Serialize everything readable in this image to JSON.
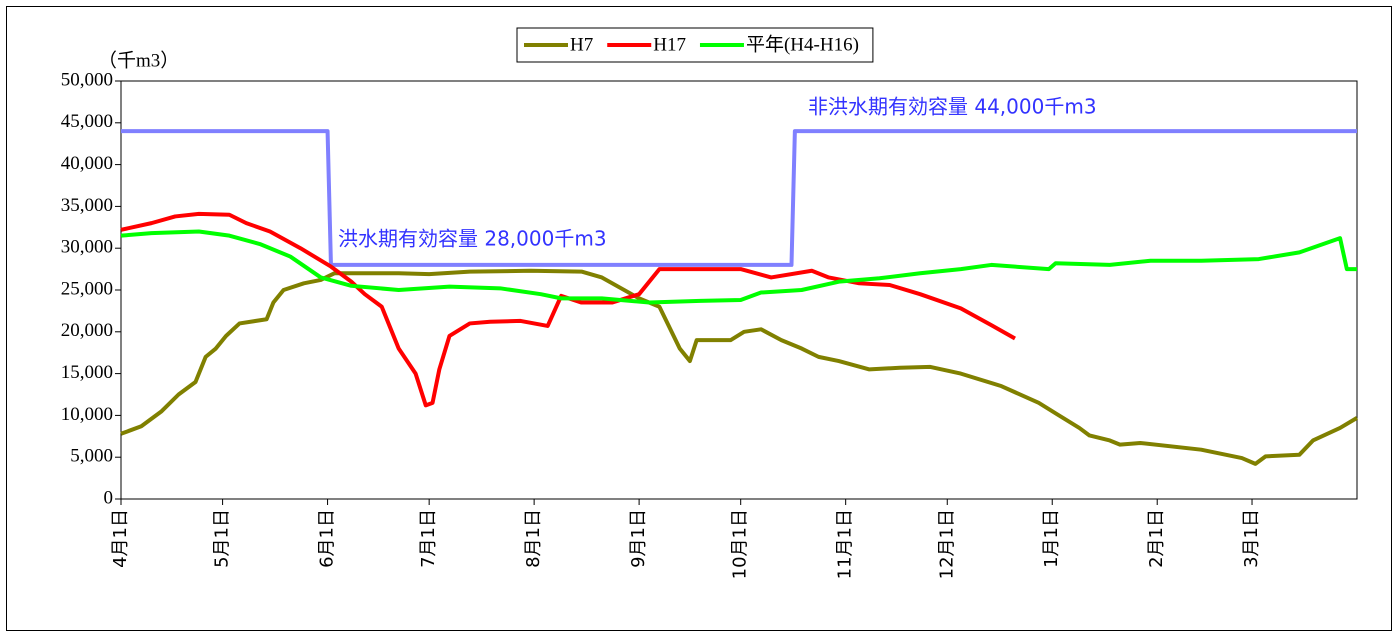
{
  "chart_data": {
    "type": "line",
    "y_label": "（千m3）",
    "xlim": [
      0,
      365
    ],
    "xticks": [
      {
        "value": 0,
        "label": "4月1日"
      },
      {
        "value": 30,
        "label": "5月1日"
      },
      {
        "value": 61,
        "label": "6月1日"
      },
      {
        "value": 91,
        "label": "7月1日"
      },
      {
        "value": 122,
        "label": "8月1日"
      },
      {
        "value": 153,
        "label": "9月1日"
      },
      {
        "value": 183,
        "label": "10月1日"
      },
      {
        "value": 214,
        "label": "11月1日"
      },
      {
        "value": 244,
        "label": "12月1日"
      },
      {
        "value": 275,
        "label": "1月1日"
      },
      {
        "value": 306,
        "label": "2月1日"
      },
      {
        "value": 334,
        "label": "3月1日"
      }
    ],
    "ylim": [
      0,
      50000
    ],
    "yticks": [
      {
        "value": 0,
        "label": "0"
      },
      {
        "value": 5000,
        "label": "5,000"
      },
      {
        "value": 10000,
        "label": "10,000"
      },
      {
        "value": 15000,
        "label": "15,000"
      },
      {
        "value": 20000,
        "label": "20,000"
      },
      {
        "value": 25000,
        "label": "25,000"
      },
      {
        "value": 30000,
        "label": "30,000"
      },
      {
        "value": 35000,
        "label": "35,000"
      },
      {
        "value": 40000,
        "label": "40,000"
      },
      {
        "value": 45000,
        "label": "45,000"
      },
      {
        "value": 50000,
        "label": "50,000"
      }
    ],
    "series": [
      {
        "name": "H7",
        "color": "#808000",
        "x": [
          0,
          6,
          12,
          17,
          22,
          23,
          25,
          28,
          31,
          35,
          43,
          45,
          48,
          54,
          59,
          63,
          82,
          91,
          103,
          121,
          136,
          142,
          153,
          159,
          165,
          168,
          170,
          180,
          184,
          189,
          195,
          201,
          206,
          212,
          221,
          230,
          239,
          248,
          260,
          271,
          277,
          283,
          286,
          292,
          295,
          301,
          319,
          331,
          335,
          338,
          348,
          352,
          360,
          365
        ],
        "values": [
          7800,
          8700,
          10500,
          12500,
          14000,
          15000,
          17000,
          18000,
          19500,
          21000,
          21500,
          23500,
          25000,
          25800,
          26200,
          27000,
          27000,
          26900,
          27200,
          27300,
          27200,
          26500,
          24000,
          23000,
          18000,
          16500,
          19000,
          19000,
          20000,
          20300,
          19000,
          18000,
          17000,
          16500,
          15500,
          15700,
          15800,
          15000,
          13500,
          11500,
          10000,
          8500,
          7600,
          7000,
          6500,
          6700,
          5900,
          4900,
          4200,
          5100,
          5300,
          7000,
          8500,
          9700
        ]
      },
      {
        "name": "H17",
        "color": "#ff0000",
        "x": [
          0,
          9,
          16,
          23,
          32,
          37,
          44,
          53,
          62,
          68,
          72,
          77,
          82,
          87,
          90,
          92,
          94,
          97,
          103,
          109,
          118,
          126,
          130,
          136,
          145,
          153,
          159,
          171,
          183,
          192,
          204,
          209,
          218,
          227,
          236,
          248,
          257,
          264
        ],
        "values": [
          32200,
          33000,
          33800,
          34100,
          34000,
          33000,
          32000,
          30000,
          27800,
          26000,
          24500,
          23000,
          18000,
          15000,
          11200,
          11500,
          15500,
          19500,
          21000,
          21200,
          21300,
          20700,
          24300,
          23500,
          23500,
          24500,
          27500,
          27500,
          27500,
          26500,
          27300,
          26500,
          25800,
          25600,
          24500,
          22800,
          20800,
          19200
        ]
      },
      {
        "name": "平年(H4-H16)",
        "color": "#00ff00",
        "x": [
          0,
          9,
          23,
          32,
          41,
          50,
          59,
          68,
          82,
          97,
          112,
          124,
          130,
          142,
          156,
          171,
          183,
          189,
          201,
          212,
          224,
          236,
          248,
          257,
          274,
          276,
          292,
          304,
          319,
          336,
          348,
          360,
          362,
          365
        ],
        "values": [
          31500,
          31800,
          32000,
          31500,
          30500,
          29000,
          26500,
          25500,
          25000,
          25400,
          25200,
          24500,
          24000,
          24000,
          23500,
          23700,
          23800,
          24700,
          25000,
          26000,
          26400,
          27000,
          27500,
          28000,
          27500,
          28200,
          28000,
          28500,
          28500,
          28700,
          29500,
          31200,
          27500,
          27500
        ]
      }
    ],
    "reference_line": {
      "color": "#8080ff",
      "x": [
        0,
        61,
        62,
        198,
        199,
        365
      ],
      "values": [
        44000,
        44000,
        28000,
        28000,
        44000,
        44000
      ]
    },
    "annotations": [
      "非洪水期有効容量 44,000千m3",
      "洪水期有効容量 28,000千m3"
    ]
  }
}
